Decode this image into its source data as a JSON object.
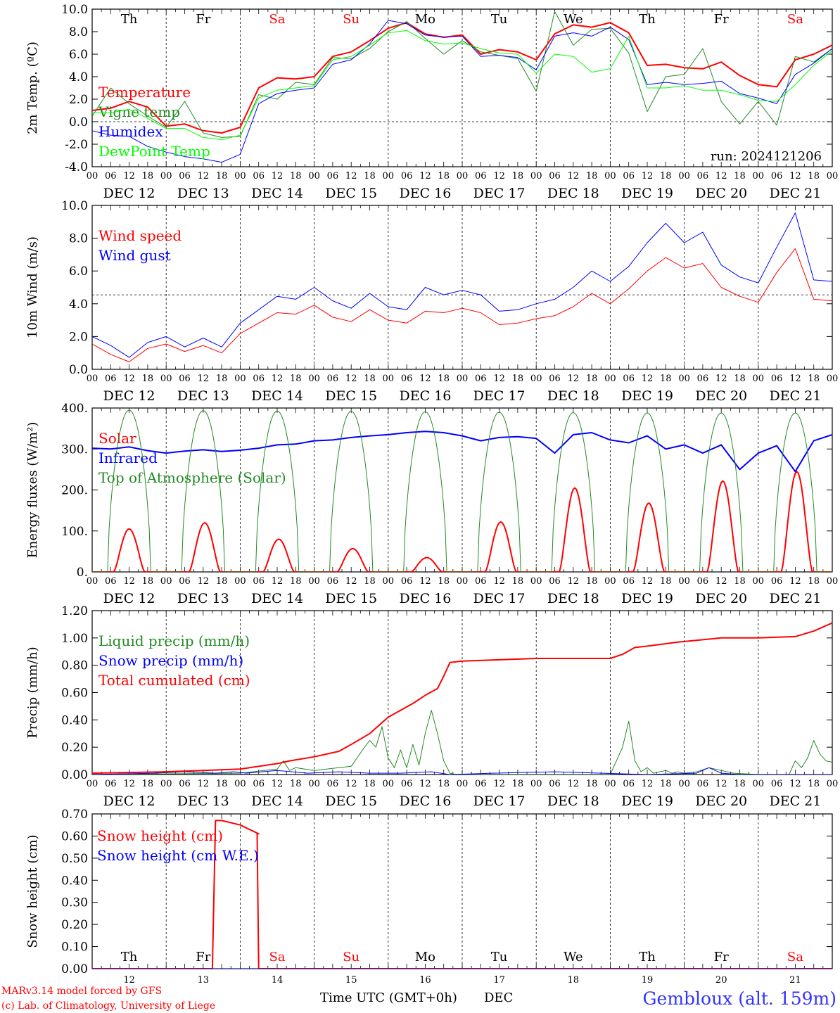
{
  "days": [
    "Th",
    "Fr",
    "Sa",
    "Su",
    "Mo",
    "Tu",
    "We",
    "Th",
    "Fr",
    "Sa"
  ],
  "weekend_days": [
    "Sa",
    "Su"
  ],
  "hour_labels": [
    "00",
    "06",
    "12",
    "18"
  ],
  "date_labels": [
    "DEC 12",
    "DEC 13",
    "DEC 14",
    "DEC 15",
    "DEC 16",
    "DEC 17",
    "DEC 18",
    "DEC 19",
    "DEC 20",
    "DEC 21"
  ],
  "bottom_date_numbers": [
    "12",
    "13",
    "14",
    "15",
    "16",
    "17",
    "18",
    "19",
    "20",
    "21"
  ],
  "final_hour_label": "00",
  "run_label": "run: 2024121206",
  "footer": {
    "model": "MARv3.14 model forced by GFS",
    "credit": "(c) Lab. of Climatology, University of Liege",
    "xlabel": "Time UTC (GMT+0h)",
    "month": "DEC",
    "station": "Gembloux (alt. 159m)"
  },
  "colors": {
    "red": "#ff0000",
    "green": "#228b22",
    "blue": "#0000ff",
    "lime": "#00ff00",
    "weekend": "#ff0000",
    "axis": "#000000",
    "station": "#3333ff"
  },
  "chart_data": [
    {
      "type": "line",
      "ylabel": "2m Temp. (ºC)",
      "ylim": [
        -4,
        10
      ],
      "yticks": [
        "-4.0",
        "-2.0",
        "0.0",
        "2.0",
        "4.0",
        "6.0",
        "8.0",
        "10.0"
      ],
      "ref_line": 0,
      "x_unit": "hours since DEC 12 00 UTC",
      "series": [
        {
          "name": "Temperature",
          "color": "red",
          "width": 2,
          "x": [
            0,
            6,
            12,
            18,
            24,
            30,
            36,
            42,
            48,
            54,
            60,
            66,
            72,
            78,
            84,
            90,
            96,
            102,
            108,
            114,
            120,
            126,
            132,
            138,
            144,
            150,
            156,
            162,
            168,
            174,
            180,
            186,
            192,
            198,
            204,
            210,
            216,
            222,
            228,
            234,
            240
          ],
          "y": [
            1.0,
            1.2,
            1.8,
            1.3,
            -0.4,
            -0.2,
            -0.8,
            -1.0,
            -0.5,
            3.0,
            3.9,
            3.8,
            4.0,
            5.8,
            6.2,
            7.2,
            8.3,
            8.8,
            7.8,
            7.5,
            7.7,
            6.0,
            6.4,
            6.2,
            5.5,
            7.8,
            8.6,
            8.4,
            8.8,
            7.9,
            5.0,
            5.1,
            4.8,
            4.7,
            5.3,
            4.1,
            3.3,
            3.1,
            5.5,
            6.0,
            6.8
          ]
        },
        {
          "name": "Vigne temp",
          "color": "green",
          "width": 1,
          "x": [
            0,
            6,
            12,
            18,
            24,
            30,
            36,
            42,
            48,
            54,
            60,
            66,
            72,
            78,
            84,
            90,
            96,
            102,
            108,
            114,
            120,
            126,
            132,
            138,
            144,
            150,
            156,
            162,
            168,
            174,
            180,
            186,
            192,
            198,
            204,
            210,
            216,
            222,
            228,
            234,
            240
          ],
          "y": [
            0.5,
            3.0,
            1.6,
            0.5,
            -0.5,
            1.8,
            -1.0,
            -1.4,
            -1.3,
            2.4,
            2.0,
            3.5,
            3.3,
            5.7,
            5.6,
            6.5,
            8.0,
            8.9,
            7.4,
            6.0,
            7.2,
            6.2,
            5.9,
            5.6,
            2.7,
            9.8,
            6.8,
            8.2,
            8.3,
            6.1,
            0.9,
            4.0,
            4.2,
            6.5,
            1.8,
            -0.2,
            1.8,
            -0.3,
            5.8,
            5.3,
            6.5
          ]
        },
        {
          "name": "Humidex",
          "color": "blue",
          "width": 1,
          "x": [
            0,
            6,
            12,
            18,
            24,
            30,
            36,
            42,
            48,
            54,
            60,
            66,
            72,
            78,
            84,
            90,
            96,
            102,
            108,
            114,
            120,
            126,
            132,
            138,
            144,
            150,
            156,
            162,
            168,
            174,
            180,
            186,
            192,
            198,
            204,
            210,
            216,
            222,
            228,
            234,
            240
          ],
          "y": [
            -0.8,
            -1.2,
            -1.3,
            -2.2,
            -2.7,
            -3.1,
            -3.3,
            -3.6,
            -2.9,
            1.6,
            2.5,
            2.8,
            3.0,
            5.1,
            5.5,
            6.9,
            9.0,
            8.7,
            7.7,
            7.5,
            7.6,
            5.8,
            5.9,
            5.7,
            4.6,
            7.6,
            7.9,
            7.6,
            8.4,
            7.3,
            3.3,
            3.5,
            3.3,
            3.4,
            3.6,
            2.5,
            2.1,
            1.6,
            4.2,
            5.2,
            6.5
          ]
        },
        {
          "name": "DewPoint Temp",
          "color": "lime",
          "width": 1,
          "x": [
            0,
            6,
            12,
            18,
            24,
            30,
            36,
            42,
            48,
            54,
            60,
            66,
            72,
            78,
            84,
            90,
            96,
            102,
            108,
            114,
            120,
            126,
            132,
            138,
            144,
            150,
            156,
            162,
            168,
            174,
            180,
            186,
            192,
            198,
            204,
            210,
            216,
            222,
            228,
            234,
            240
          ],
          "y": [
            0.8,
            0.8,
            1.1,
            0.3,
            -0.6,
            -0.6,
            -1.4,
            -1.6,
            -1.2,
            2.1,
            2.8,
            3.0,
            3.2,
            5.5,
            5.8,
            6.8,
            7.9,
            8.1,
            7.2,
            6.9,
            7.0,
            6.5,
            6.1,
            6.0,
            4.3,
            6.0,
            5.8,
            4.4,
            4.7,
            7.6,
            3.0,
            3.0,
            3.2,
            2.8,
            2.8,
            2.4,
            1.9,
            1.8,
            3.3,
            5.0,
            6.3
          ]
        }
      ]
    },
    {
      "type": "line",
      "ylabel": "10m Wind (m/s)",
      "ylim": [
        0,
        11
      ],
      "yticks": [
        "0.0",
        "2.0",
        "4.0",
        "6.0",
        "8.0",
        "10.0"
      ],
      "ref_line": 5,
      "series": [
        {
          "name": "Wind speed",
          "color": "red",
          "width": 1,
          "x": [
            0,
            6,
            12,
            18,
            24,
            30,
            36,
            42,
            48,
            54,
            60,
            66,
            72,
            78,
            84,
            90,
            96,
            102,
            108,
            114,
            120,
            126,
            132,
            138,
            144,
            150,
            156,
            162,
            168,
            174,
            180,
            186,
            192,
            198,
            204,
            210,
            216,
            222,
            228,
            234,
            240
          ],
          "y": [
            1.7,
            1.0,
            0.5,
            1.4,
            1.7,
            1.2,
            1.6,
            1.1,
            2.4,
            3.1,
            3.8,
            3.7,
            4.3,
            3.5,
            3.2,
            4.0,
            3.3,
            3.1,
            3.9,
            3.8,
            4.1,
            3.8,
            3.0,
            3.1,
            3.4,
            3.6,
            4.2,
            5.1,
            4.4,
            5.4,
            6.6,
            7.5,
            6.8,
            7.1,
            5.5,
            4.9,
            4.5,
            6.5,
            8.1,
            4.7,
            4.6
          ]
        },
        {
          "name": "Wind gust",
          "color": "blue",
          "width": 1,
          "x": [
            0,
            6,
            12,
            18,
            24,
            30,
            36,
            42,
            48,
            54,
            60,
            66,
            72,
            78,
            84,
            90,
            96,
            102,
            108,
            114,
            120,
            126,
            132,
            138,
            144,
            150,
            156,
            162,
            168,
            174,
            180,
            186,
            192,
            198,
            204,
            210,
            216,
            222,
            228,
            234,
            240
          ],
          "y": [
            2.2,
            1.6,
            0.8,
            1.8,
            2.2,
            1.5,
            2.1,
            1.5,
            3.1,
            4.0,
            4.9,
            4.7,
            5.5,
            4.6,
            4.1,
            5.1,
            4.2,
            4.0,
            5.5,
            5.0,
            5.3,
            5.0,
            3.9,
            4.0,
            4.4,
            4.7,
            5.5,
            6.6,
            5.9,
            6.9,
            8.5,
            9.8,
            8.5,
            9.2,
            7.0,
            6.2,
            5.8,
            8.2,
            10.5,
            6.0,
            5.9
          ]
        }
      ]
    },
    {
      "type": "line",
      "ylabel": "Energy fluxes (W/m²)",
      "ylim": [
        0,
        400
      ],
      "yticks": [
        "0.",
        "100.",
        "200.",
        "300.",
        "400."
      ],
      "series": [
        {
          "name": "Solar",
          "color": "red",
          "width": 2,
          "peaks_hour": [
            12.0,
            36.5,
            60.5,
            84.5,
            108.5,
            132.5,
            156.5,
            180.5,
            204.5,
            228.5
          ],
          "peaks_value": [
            105,
            120,
            80,
            57,
            35,
            122,
            205,
            168,
            222,
            245
          ]
        },
        {
          "name": "Infrared",
          "color": "blue",
          "width": 2,
          "x": [
            0,
            6,
            12,
            18,
            24,
            30,
            36,
            42,
            48,
            54,
            60,
            66,
            72,
            78,
            84,
            90,
            96,
            102,
            108,
            114,
            120,
            126,
            132,
            138,
            144,
            150,
            156,
            162,
            168,
            174,
            180,
            186,
            192,
            198,
            204,
            210,
            216,
            222,
            228,
            234,
            240
          ],
          "y": [
            302,
            300,
            305,
            296,
            290,
            295,
            298,
            294,
            297,
            302,
            310,
            312,
            320,
            322,
            328,
            332,
            335,
            340,
            343,
            340,
            332,
            320,
            328,
            330,
            326,
            290,
            335,
            340,
            322,
            315,
            332,
            300,
            310,
            290,
            310,
            250,
            290,
            308,
            245,
            320,
            335
          ]
        },
        {
          "name": "Top of Atmosphere (Solar)",
          "color": "green",
          "width": 1,
          "peaks_hour": [
            12,
            36,
            60,
            84,
            108,
            132,
            156,
            180,
            204,
            228
          ],
          "peaks_value": [
            395,
            394,
            393,
            392,
            391,
            390,
            389,
            388,
            388,
            388
          ]
        }
      ]
    },
    {
      "type": "line",
      "ylabel": "Precip (mm/h)",
      "ylim": [
        0,
        1.2
      ],
      "yticks": [
        "0.00",
        "0.20",
        "0.40",
        "0.60",
        "0.80",
        "1.00",
        "1.20"
      ],
      "series": [
        {
          "name": "Liquid precip (mm/h)",
          "color": "green",
          "width": 1,
          "x": [
            0,
            48,
            60,
            62,
            64,
            66,
            72,
            84,
            88,
            90,
            92,
            94,
            96,
            98,
            100,
            102,
            104,
            106,
            108,
            110,
            112,
            114,
            116,
            118,
            120,
            132,
            144,
            168,
            170,
            172,
            174,
            176,
            178,
            180,
            182,
            186,
            188,
            190,
            192,
            196,
            200,
            208,
            216,
            226,
            228,
            230,
            232,
            234,
            236,
            238,
            240
          ],
          "y": [
            0,
            0.01,
            0.04,
            0.1,
            0.03,
            0.05,
            0.03,
            0.06,
            0.19,
            0.25,
            0.2,
            0.35,
            0.12,
            0.05,
            0.18,
            0.05,
            0.22,
            0.07,
            0.3,
            0.47,
            0.3,
            0.1,
            0.01,
            0,
            0,
            0,
            0,
            0,
            0.1,
            0.2,
            0.39,
            0.1,
            0.02,
            0.05,
            0.01,
            0.03,
            0.01,
            0.02,
            0.01,
            0.02,
            0.05,
            0.01,
            0,
            0,
            0.1,
            0.05,
            0.12,
            0.25,
            0.15,
            0.1,
            0.09
          ]
        },
        {
          "name": "Snow precip (mm/h)",
          "color": "blue",
          "width": 1,
          "x": [
            0,
            20,
            30,
            40,
            46,
            50,
            60,
            70,
            80,
            90,
            100,
            110,
            116,
            130,
            150,
            180,
            196,
            200,
            204,
            210,
            240
          ],
          "y": [
            0,
            0.01,
            0.02,
            0.01,
            0.02,
            0.01,
            0.03,
            0.01,
            0.02,
            0.01,
            0.01,
            0.02,
            0,
            0.01,
            0.02,
            0,
            0.01,
            0.05,
            0.01,
            0,
            0
          ]
        },
        {
          "name": "Total cumulated (cm)",
          "color": "red",
          "width": 2,
          "x": [
            0,
            24,
            36,
            48,
            60,
            64,
            72,
            80,
            84,
            90,
            94,
            96,
            100,
            104,
            108,
            112,
            114,
            116,
            120,
            132,
            144,
            156,
            168,
            172,
            176,
            180,
            190,
            204,
            216,
            228,
            234,
            240
          ],
          "y": [
            0.01,
            0.02,
            0.03,
            0.04,
            0.08,
            0.1,
            0.13,
            0.17,
            0.22,
            0.3,
            0.38,
            0.42,
            0.47,
            0.52,
            0.58,
            0.63,
            0.72,
            0.82,
            0.83,
            0.84,
            0.85,
            0.85,
            0.85,
            0.88,
            0.93,
            0.94,
            0.97,
            1.0,
            1.0,
            1.01,
            1.05,
            1.11
          ]
        }
      ]
    },
    {
      "type": "line",
      "ylabel": "Snow height (cm)",
      "ylim": [
        0,
        0.7
      ],
      "yticks": [
        "0.00",
        "0.10",
        "0.20",
        "0.30",
        "0.40",
        "0.50",
        "0.60",
        "0.70"
      ],
      "series": [
        {
          "name": "Snow height (cm)",
          "color": "red",
          "width": 2,
          "x": [
            0,
            39,
            40,
            42,
            48,
            54,
            53.5,
            54,
            240
          ],
          "y": [
            0,
            0,
            0.67,
            0.67,
            0.65,
            0.61,
            0.61,
            0,
            0
          ]
        },
        {
          "name": "Snow height (cm W.E.)",
          "color": "blue",
          "width": 1,
          "x": [
            0,
            240
          ],
          "y": [
            0,
            0
          ]
        }
      ]
    }
  ]
}
